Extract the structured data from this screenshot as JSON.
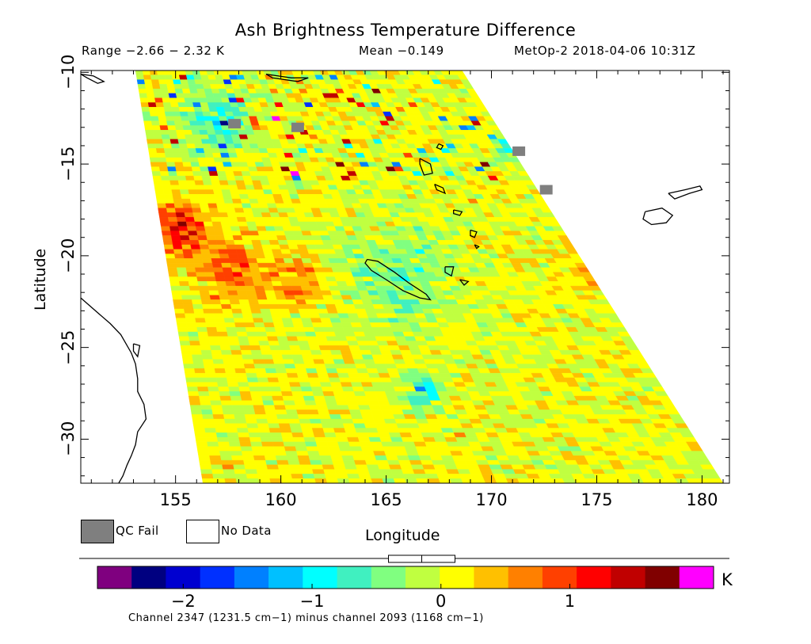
{
  "header": {
    "title": "Ash Brightness Temperature Difference",
    "range_text": "Range −2.66 − 2.32 K",
    "mean_text": "Mean −0.149",
    "satellite_text": "MetOp-2 2018-04-06 10:31Z"
  },
  "axes": {
    "x_label": "Longitude",
    "y_label": "Latitude",
    "x_ticks": [
      155,
      160,
      165,
      170,
      175,
      180
    ],
    "y_ticks": [
      -10,
      -15,
      -20,
      -25,
      -30
    ],
    "x_range": [
      150.5,
      181.3
    ],
    "y_range": [
      -32.4,
      -9.9
    ]
  },
  "legend": {
    "qc_fail_label": "QC Fail",
    "no_data_label": "No Data",
    "qc_fail_color": "#7f7f7f",
    "no_data_color": "#ffffff"
  },
  "colorbar": {
    "unit": "K",
    "ticks": [
      "−2",
      "−1",
      "0",
      "1"
    ],
    "range": [
      -2.4,
      1.85
    ],
    "under_color": "#7f007f",
    "over_color": "#ff00ff",
    "colors": [
      "#000080",
      "#0000d0",
      "#0030ff",
      "#0080ff",
      "#00c0ff",
      "#00ffff",
      "#40f0c0",
      "#80ff80",
      "#c0ff40",
      "#ffff00",
      "#ffc000",
      "#ff8000",
      "#ff4000",
      "#ff0000",
      "#c00000",
      "#800000"
    ],
    "slider_center": -0.149
  },
  "footnote": "Channel 2347 (1231.5 cm−1) minus channel 2093 (1168 cm−1)",
  "map_data": {
    "swath_corners_lonlat": [
      [
        153.1,
        -9.9
      ],
      [
        168.6,
        -9.9
      ],
      [
        181.0,
        -32.4
      ],
      [
        156.3,
        -32.4
      ]
    ],
    "qc_fail_cells": [
      [
        157.8,
        -12.8
      ],
      [
        171.3,
        -14.3
      ],
      [
        172.6,
        -16.4
      ],
      [
        160.8,
        -13.0
      ]
    ],
    "anomalies": [
      {
        "lon": 155.2,
        "lat": -18.5,
        "value": 1.2,
        "spread": 1.4
      },
      {
        "lon": 157.5,
        "lat": -20.8,
        "value": 0.8,
        "spread": 1.6
      },
      {
        "lon": 160.8,
        "lat": -21.5,
        "value": 0.6,
        "spread": 1.5
      },
      {
        "lon": 171.5,
        "lat": -13.8,
        "value": -1.5,
        "spread": 1.0
      },
      {
        "lon": 166.8,
        "lat": -27.4,
        "value": -0.9,
        "spread": 0.9
      },
      {
        "lon": 157.0,
        "lat": -12.6,
        "value": -0.8,
        "spread": 1.6
      },
      {
        "lon": 165.5,
        "lat": -21.0,
        "value": -0.5,
        "spread": 2.8
      },
      {
        "lon": 175.5,
        "lat": -20.5,
        "value": 0.6,
        "spread": 1.5
      }
    ],
    "coastlines": {
      "australia": [
        [
          150.5,
          -22.3
        ],
        [
          150.9,
          -22.7
        ],
        [
          151.4,
          -23.2
        ],
        [
          151.9,
          -23.7
        ],
        [
          152.4,
          -24.3
        ],
        [
          152.9,
          -25.3
        ],
        [
          153.1,
          -25.9
        ],
        [
          153.2,
          -26.7
        ],
        [
          153.2,
          -27.4
        ],
        [
          153.5,
          -28.1
        ],
        [
          153.6,
          -28.9
        ],
        [
          153.2,
          -29.6
        ],
        [
          153.1,
          -30.3
        ],
        [
          152.9,
          -30.9
        ],
        [
          152.7,
          -31.4
        ],
        [
          152.5,
          -32.0
        ],
        [
          152.3,
          -32.4
        ]
      ],
      "fraser_island": [
        [
          153.0,
          -24.8
        ],
        [
          153.3,
          -24.9
        ],
        [
          153.2,
          -25.5
        ],
        [
          153.0,
          -25.2
        ],
        [
          153.0,
          -24.8
        ]
      ],
      "png_corner": [
        [
          150.5,
          -10.1
        ],
        [
          151.1,
          -10.2
        ],
        [
          151.6,
          -10.5
        ],
        [
          151.3,
          -10.6
        ],
        [
          150.8,
          -10.3
        ],
        [
          150.5,
          -10.1
        ]
      ],
      "solomons": [
        [
          159.3,
          -10.1
        ],
        [
          160.5,
          -10.3
        ],
        [
          161.3,
          -10.3
        ],
        [
          160.8,
          -10.5
        ],
        [
          159.6,
          -10.3
        ],
        [
          159.3,
          -10.1
        ]
      ],
      "new_caledonia": [
        [
          164.1,
          -20.2
        ],
        [
          164.6,
          -20.3
        ],
        [
          165.4,
          -20.9
        ],
        [
          166.1,
          -21.5
        ],
        [
          166.9,
          -22.1
        ],
        [
          167.1,
          -22.4
        ],
        [
          166.6,
          -22.3
        ],
        [
          165.8,
          -21.9
        ],
        [
          165.0,
          -21.3
        ],
        [
          164.3,
          -20.8
        ],
        [
          164.0,
          -20.4
        ],
        [
          164.1,
          -20.2
        ]
      ],
      "loyalty1": [
        [
          167.8,
          -20.6
        ],
        [
          168.2,
          -20.6
        ],
        [
          168.1,
          -21.1
        ],
        [
          167.8,
          -20.9
        ],
        [
          167.8,
          -20.6
        ]
      ],
      "loyalty2": [
        [
          168.5,
          -21.3
        ],
        [
          168.9,
          -21.4
        ],
        [
          168.7,
          -21.6
        ],
        [
          168.5,
          -21.3
        ]
      ],
      "espiritu_santo": [
        [
          166.6,
          -14.7
        ],
        [
          167.1,
          -15.0
        ],
        [
          167.2,
          -15.5
        ],
        [
          166.8,
          -15.6
        ],
        [
          166.6,
          -15.0
        ],
        [
          166.6,
          -14.7
        ]
      ],
      "malekula": [
        [
          167.3,
          -16.1
        ],
        [
          167.7,
          -16.3
        ],
        [
          167.8,
          -16.6
        ],
        [
          167.4,
          -16.4
        ],
        [
          167.3,
          -16.1
        ]
      ],
      "efate": [
        [
          168.2,
          -17.5
        ],
        [
          168.6,
          -17.6
        ],
        [
          168.5,
          -17.8
        ],
        [
          168.2,
          -17.7
        ],
        [
          168.2,
          -17.5
        ]
      ],
      "erromango": [
        [
          169.0,
          -18.6
        ],
        [
          169.3,
          -18.7
        ],
        [
          169.2,
          -19.0
        ],
        [
          169.0,
          -18.9
        ],
        [
          169.0,
          -18.6
        ]
      ],
      "tanna": [
        [
          169.2,
          -19.4
        ],
        [
          169.4,
          -19.5
        ],
        [
          169.3,
          -19.6
        ],
        [
          169.2,
          -19.4
        ]
      ],
      "banks": [
        [
          167.5,
          -13.9
        ],
        [
          167.7,
          -14.0
        ],
        [
          167.6,
          -14.2
        ],
        [
          167.4,
          -14.1
        ],
        [
          167.5,
          -13.9
        ]
      ],
      "vanua_levu": [
        [
          178.4,
          -16.6
        ],
        [
          179.2,
          -16.4
        ],
        [
          179.9,
          -16.2
        ],
        [
          180.0,
          -16.4
        ],
        [
          179.4,
          -16.6
        ],
        [
          178.7,
          -16.9
        ],
        [
          178.4,
          -16.6
        ]
      ],
      "viti_levu": [
        [
          177.3,
          -17.6
        ],
        [
          178.1,
          -17.4
        ],
        [
          178.6,
          -17.8
        ],
        [
          178.3,
          -18.2
        ],
        [
          177.6,
          -18.3
        ],
        [
          177.2,
          -18.0
        ],
        [
          177.3,
          -17.6
        ]
      ]
    }
  }
}
